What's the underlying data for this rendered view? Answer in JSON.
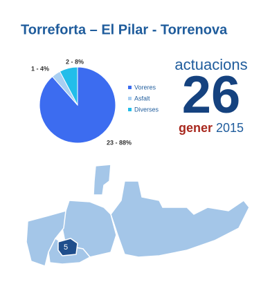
{
  "header": {
    "title": "Torreforta – El Pilar - Torrenova"
  },
  "chart_data": {
    "type": "pie",
    "categories": [
      "Voreres",
      "Asfalt",
      "Diverses"
    ],
    "values": [
      23,
      1,
      2
    ],
    "value_labels": [
      "23 - 88%",
      "1 - 4%",
      "2 - 8%"
    ],
    "colors": [
      "#3c6cf0",
      "#a9cff2",
      "#22bdea"
    ]
  },
  "counter": {
    "caption": "actuacions",
    "number": "26",
    "month": "gener",
    "year": "2015"
  },
  "map": {
    "district_label": "5"
  }
}
